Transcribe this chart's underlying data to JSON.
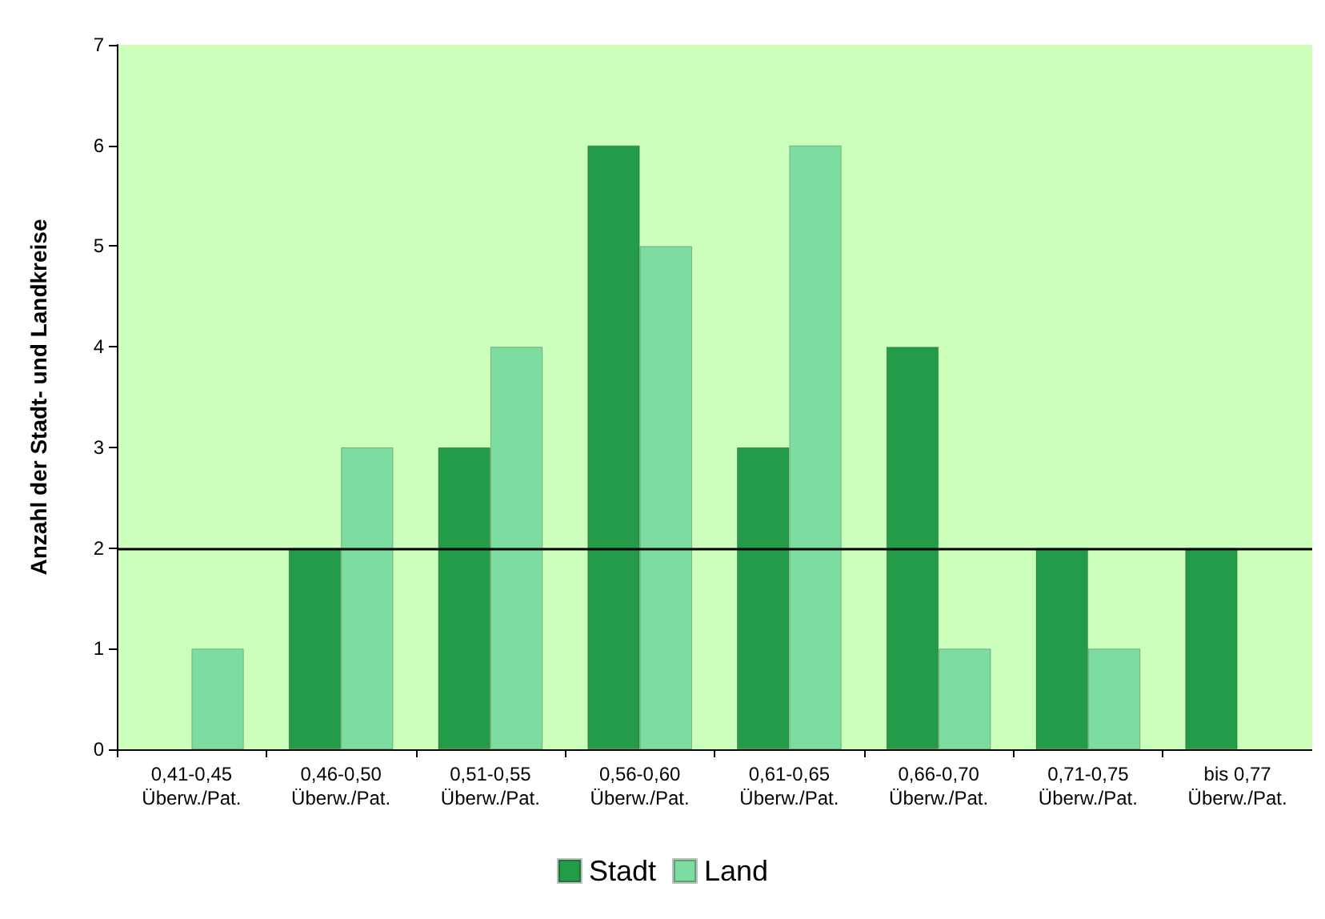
{
  "chart_data": {
    "type": "bar",
    "ylabel": "Anzahl der Stadt- und Landkreise",
    "categories": [
      "0,41-0,45\nÜberw./Pat.",
      "0,46-0,50\nÜberw./Pat.",
      "0,51-0,55\nÜberw./Pat.",
      "0,56-0,60\nÜberw./Pat.",
      "0,61-0,65\nÜberw./Pat.",
      "0,66-0,70\nÜberw./Pat.",
      "0,71-0,75\nÜberw./Pat.",
      "bis 0,77\nÜberw./Pat."
    ],
    "series": [
      {
        "name": "Stadt",
        "color": "#239b48",
        "values": [
          null,
          2,
          3,
          6,
          3,
          4,
          2,
          2
        ]
      },
      {
        "name": "Land",
        "color": "#7ddda0",
        "values": [
          1,
          3,
          4,
          5,
          6,
          1,
          1,
          null
        ]
      }
    ],
    "ylim": [
      0,
      7
    ],
    "yticks": [
      0,
      1,
      2,
      3,
      4,
      5,
      6,
      7
    ],
    "grid": false,
    "legend": "bottom",
    "ref_lines": [
      {
        "axis": "y",
        "value": 2,
        "color": "#000000"
      }
    ]
  }
}
